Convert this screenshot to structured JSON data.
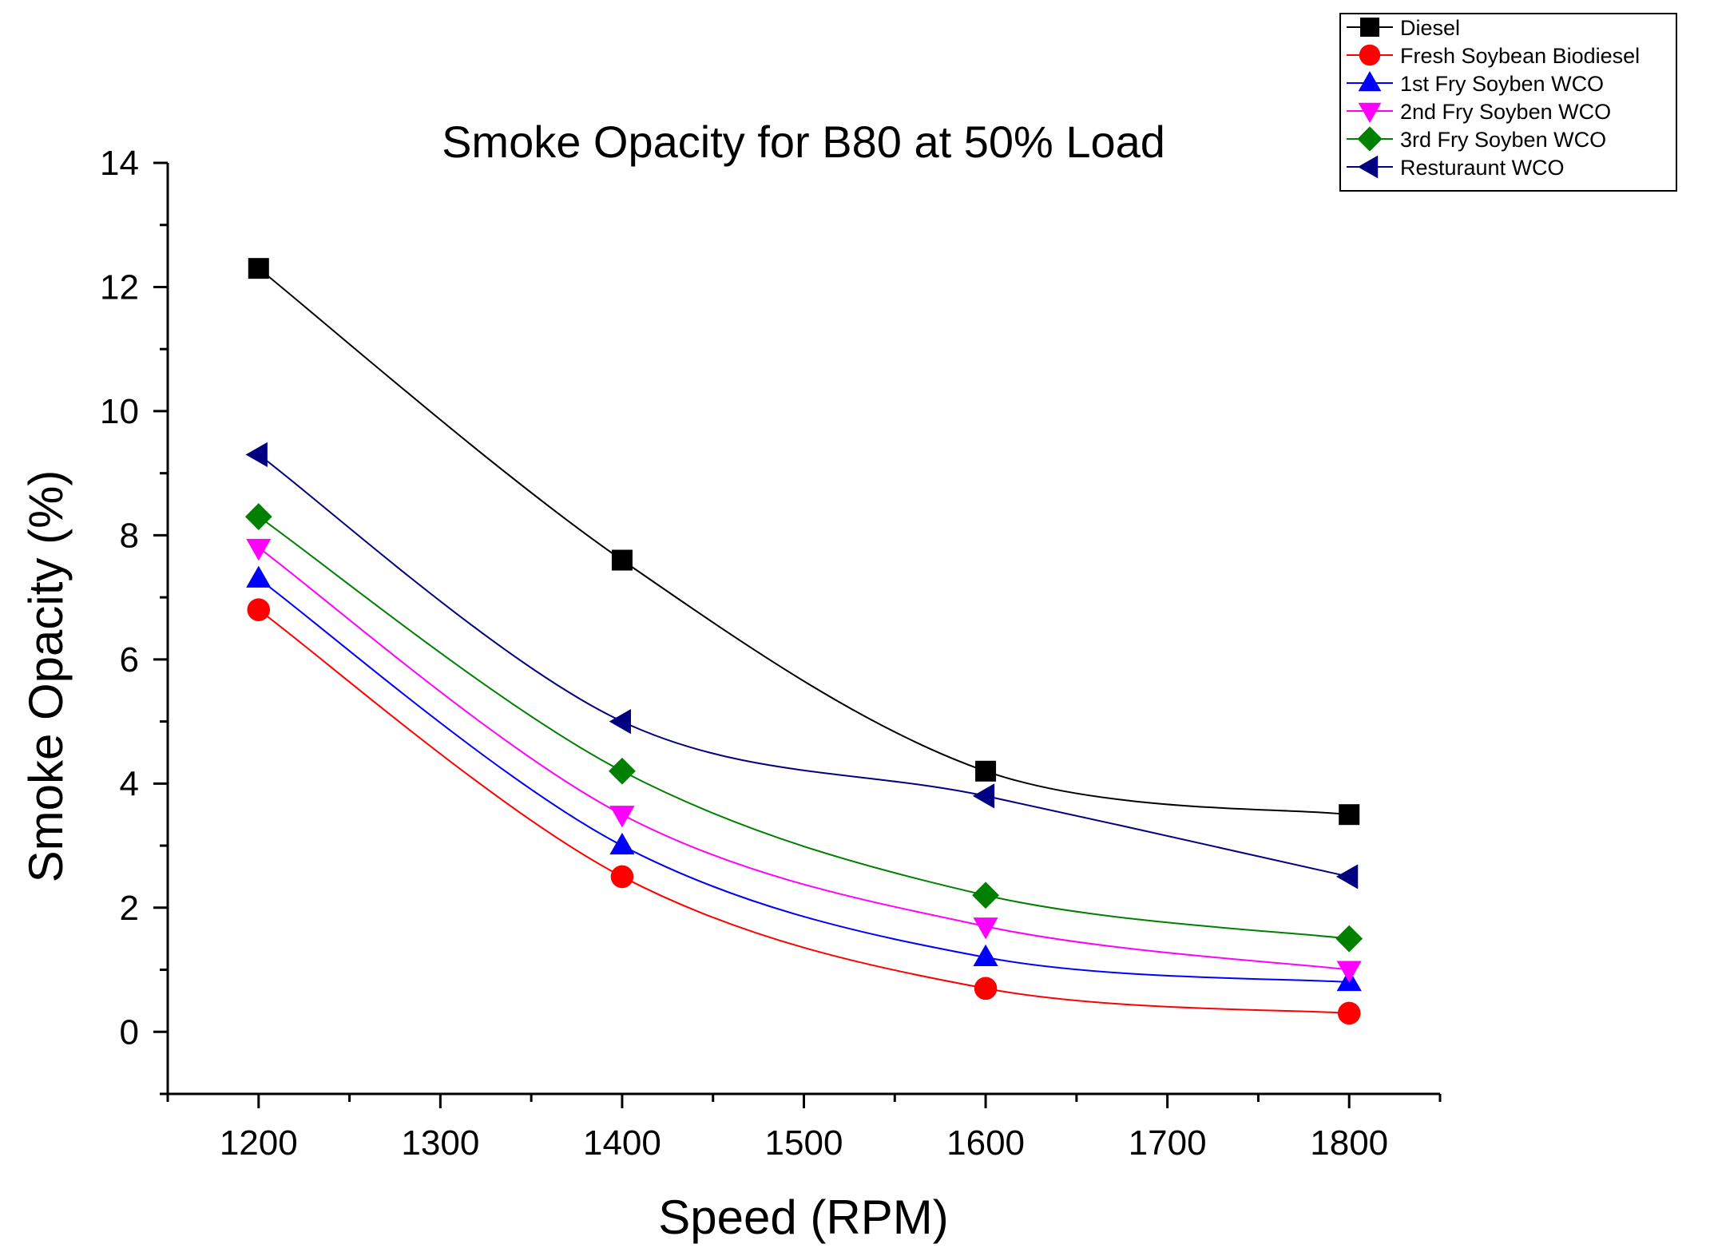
{
  "chart_data": {
    "type": "line",
    "title": "Smoke Opacity for B80 at 50% Load",
    "xlabel": "Speed (RPM)",
    "ylabel": "Smoke Opacity (%)",
    "xlim": [
      1150,
      1850
    ],
    "ylim": [
      -1,
      14
    ],
    "xticks": [
      1200,
      1300,
      1400,
      1500,
      1600,
      1700,
      1800
    ],
    "yticks": [
      0,
      2,
      4,
      6,
      8,
      10,
      12,
      14
    ],
    "x": [
      1200,
      1400,
      1600,
      1800
    ],
    "grid": false,
    "legend_position": "top-right",
    "series": [
      {
        "name": "Diesel",
        "values": [
          12.3,
          7.6,
          4.2,
          3.5
        ],
        "color": "#000000",
        "marker": "square"
      },
      {
        "name": "Fresh Soybean Biodiesel",
        "values": [
          6.8,
          2.5,
          0.7,
          0.3
        ],
        "color": "#ff0000",
        "marker": "circle"
      },
      {
        "name": "1st Fry Soyben WCO",
        "values": [
          7.3,
          3.0,
          1.2,
          0.8
        ],
        "color": "#0000ff",
        "marker": "triangle-up"
      },
      {
        "name": "2nd Fry Soyben WCO",
        "values": [
          7.8,
          3.5,
          1.7,
          1.0
        ],
        "color": "#ff00ff",
        "marker": "triangle-down"
      },
      {
        "name": "3rd Fry Soyben WCO",
        "values": [
          8.3,
          4.2,
          2.2,
          1.5
        ],
        "color": "#008000",
        "marker": "diamond"
      },
      {
        "name": "Resturaunt WCO",
        "values": [
          9.3,
          5.0,
          3.8,
          2.5
        ],
        "color": "#000080",
        "marker": "triangle-left"
      }
    ]
  }
}
